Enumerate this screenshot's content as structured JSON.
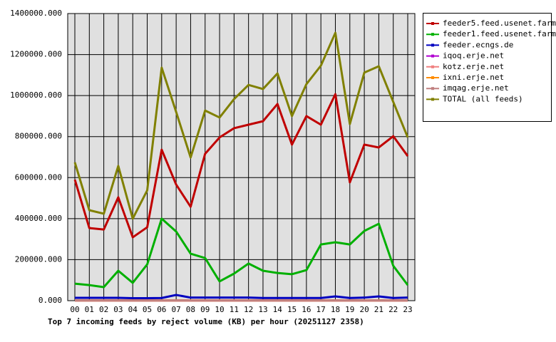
{
  "chart_data": {
    "type": "line",
    "title": "Top 7 incoming feeds by reject volume (KB) per hour (20251127 2358)",
    "categories": [
      "00",
      "01",
      "02",
      "03",
      "04",
      "05",
      "06",
      "07",
      "08",
      "09",
      "10",
      "11",
      "12",
      "13",
      "14",
      "15",
      "16",
      "17",
      "18",
      "19",
      "20",
      "21",
      "22",
      "23"
    ],
    "series": [
      {
        "name": "feeder5.feed.usenet.farm",
        "color": "#c00000",
        "values": [
          590000,
          354000,
          347000,
          504000,
          309000,
          358000,
          736000,
          566000,
          458000,
          716000,
          796000,
          841000,
          858000,
          875000,
          959000,
          761000,
          900000,
          858000,
          1007000,
          577000,
          761000,
          747000,
          802000,
          705000
        ]
      },
      {
        "name": "feeder1.feed.usenet.farm",
        "color": "#00b000",
        "values": [
          83000,
          76000,
          66000,
          146000,
          87000,
          177000,
          400000,
          337000,
          229000,
          208000,
          94000,
          132000,
          181000,
          146000,
          135000,
          129000,
          149000,
          274000,
          285000,
          274000,
          340000,
          375000,
          170000,
          76000
        ]
      },
      {
        "name": "feeder.ecngs.de",
        "color": "#0000c0",
        "values": [
          14000,
          14000,
          14000,
          14000,
          12000,
          12000,
          13000,
          28000,
          15000,
          15000,
          15000,
          15000,
          15000,
          13000,
          13000,
          13000,
          13000,
          13000,
          21000,
          13000,
          15000,
          21000,
          13000,
          15000
        ]
      },
      {
        "name": "iqoq.erje.net",
        "color": "#b000d0",
        "values": [
          1000,
          1000,
          1000,
          1000,
          1000,
          1000,
          1000,
          1000,
          1000,
          1000,
          1000,
          1000,
          1000,
          1000,
          1000,
          1000,
          1000,
          1000,
          1000,
          1000,
          1000,
          1000,
          1000,
          1000
        ]
      },
      {
        "name": "kotz.erje.net",
        "color": "#f08080",
        "values": [
          1000,
          1000,
          1000,
          1000,
          1000,
          1000,
          1000,
          1000,
          1000,
          1000,
          1000,
          1000,
          1000,
          1000,
          1000,
          1000,
          1000,
          1000,
          1000,
          1000,
          1000,
          1000,
          1000,
          1000
        ]
      },
      {
        "name": "ixni.erje.net",
        "color": "#ff8c00",
        "values": [
          1000,
          1000,
          1000,
          1000,
          1000,
          1000,
          1000,
          1000,
          1000,
          1000,
          1000,
          1000,
          1000,
          1000,
          1000,
          1000,
          1000,
          1000,
          1000,
          1000,
          1000,
          1000,
          1000,
          1000
        ]
      },
      {
        "name": "imqag.erje.net",
        "color": "#c08080",
        "values": [
          1000,
          1000,
          1000,
          1000,
          1000,
          1000,
          1000,
          1000,
          1000,
          1000,
          1000,
          1000,
          1000,
          1000,
          1000,
          1000,
          1000,
          1000,
          1000,
          1000,
          1000,
          1000,
          1000,
          1000
        ]
      },
      {
        "name": "TOTAL (all feeds)",
        "color": "#808000",
        "values": [
          674000,
          441000,
          424000,
          657000,
          400000,
          538000,
          1136000,
          920000,
          698000,
          927000,
          893000,
          983000,
          1052000,
          1032000,
          1108000,
          900000,
          1056000,
          1146000,
          1306000,
          861000,
          1112000,
          1143000,
          969000,
          796000
        ]
      }
    ],
    "ylim": [
      0,
      1400000
    ],
    "yticks": [
      {
        "value": 0,
        "label": "0.000"
      },
      {
        "value": 200000,
        "label": "200000.000"
      },
      {
        "value": 400000,
        "label": "400000.000"
      },
      {
        "value": 600000,
        "label": "600000.000"
      },
      {
        "value": 800000,
        "label": "800000.000"
      },
      {
        "value": 1000000,
        "label": "1000000.000"
      },
      {
        "value": 1200000,
        "label": "1200000.000"
      },
      {
        "value": 1400000,
        "label": "1400000.000"
      }
    ],
    "grid": true
  }
}
